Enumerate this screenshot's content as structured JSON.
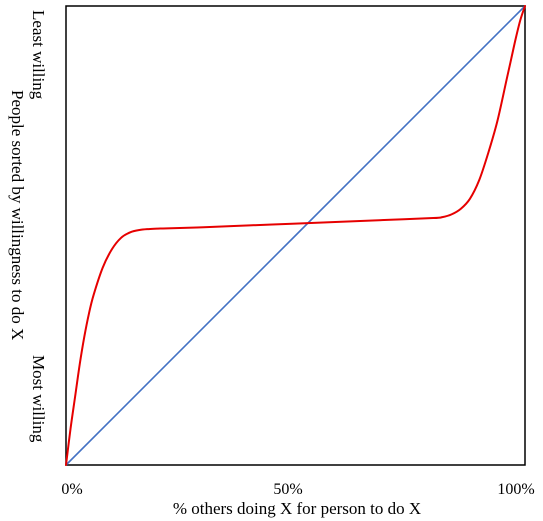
{
  "chart_data": {
    "type": "line",
    "xlabel": "% others doing X for person to do X",
    "ylabel": "People sorted by willingness to do X",
    "x_ticks": [
      "0%",
      "50%",
      "100%"
    ],
    "y_end_labels": {
      "top": "Least willing",
      "bottom": "Most willing"
    },
    "xlim": [
      0,
      100
    ],
    "ylim": [
      0,
      100
    ],
    "grid": false,
    "series": [
      {
        "color": "#4472c4",
        "x": [
          0,
          100
        ],
        "y": [
          0,
          100
        ]
      },
      {
        "color": "#e60000",
        "x": [
          0,
          1,
          2,
          3,
          4,
          5,
          6,
          8,
          10,
          12,
          14,
          16,
          18,
          20,
          22,
          30,
          40,
          50,
          60,
          70,
          80,
          82,
          84,
          86,
          88,
          90,
          92,
          94,
          96,
          97,
          98,
          99,
          100
        ],
        "y": [
          0,
          8,
          15,
          22,
          28,
          33,
          37,
          43,
          47,
          49.5,
          50.7,
          51.2,
          51.4,
          51.5,
          51.55,
          51.8,
          52.2,
          52.6,
          53.0,
          53.4,
          53.8,
          54.0,
          54.6,
          55.8,
          58.0,
          62.0,
          68.0,
          75.0,
          84.0,
          88.5,
          93.0,
          97.0,
          100
        ]
      }
    ]
  }
}
